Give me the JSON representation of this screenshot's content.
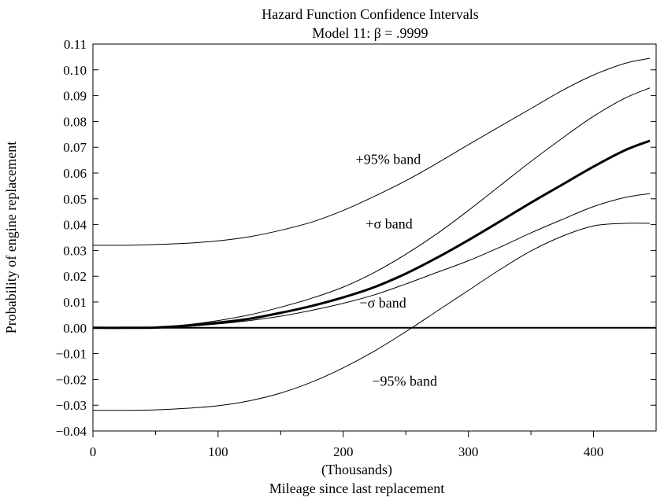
{
  "chart_data": {
    "type": "line",
    "title": "Hazard Function Confidence Intervals",
    "subtitle": "Model 11: β = .9999",
    "xlabel_line1": "(Thousands)",
    "xlabel_line2": "Mileage since last replacement",
    "ylabel": "Probability of engine replacement",
    "xlim": [
      0,
      450
    ],
    "ylim": [
      -0.04,
      0.11
    ],
    "x_ticks": [
      0,
      100,
      200,
      300,
      400
    ],
    "x_tick_labels": [
      "0",
      "100",
      "200",
      "300",
      "400"
    ],
    "x_minor_ticks": [
      50,
      150,
      250,
      350
    ],
    "y_ticks": [
      -0.04,
      -0.03,
      -0.02,
      -0.01,
      0.0,
      0.01,
      0.02,
      0.03,
      0.04,
      0.05,
      0.06,
      0.07,
      0.08,
      0.09,
      0.1,
      0.11
    ],
    "y_tick_labels": [
      "−0.04",
      "−0.03",
      "−0.02",
      "−0.01",
      "0.00",
      "0.01",
      "0.02",
      "0.03",
      "0.04",
      "0.05",
      "0.06",
      "0.07",
      "0.08",
      "0.09",
      "0.10",
      "0.11"
    ],
    "x": [
      0,
      25,
      50,
      75,
      100,
      125,
      150,
      175,
      200,
      225,
      250,
      275,
      300,
      325,
      350,
      375,
      400,
      425,
      445
    ],
    "series": [
      {
        "id": "upper95",
        "values": [
          0.032,
          0.032,
          0.0323,
          0.0328,
          0.0337,
          0.0353,
          0.0378,
          0.041,
          0.0455,
          0.051,
          0.057,
          0.0638,
          0.071,
          0.078,
          0.085,
          0.092,
          0.098,
          0.1025,
          0.1045
        ],
        "bold": false
      },
      {
        "id": "upper_sigma",
        "values": [
          0,
          0,
          0.0002,
          0.0012,
          0.0028,
          0.005,
          0.008,
          0.0115,
          0.0158,
          0.0215,
          0.0285,
          0.0365,
          0.0455,
          0.055,
          0.0645,
          0.0735,
          0.082,
          0.089,
          0.093
        ],
        "bold": false
      },
      {
        "id": "estimate",
        "values": [
          0,
          0,
          0.0001,
          0.0008,
          0.002,
          0.0035,
          0.0058,
          0.0085,
          0.0118,
          0.0158,
          0.021,
          0.0272,
          0.034,
          0.0412,
          0.0485,
          0.0555,
          0.0625,
          0.0688,
          0.0725
        ],
        "bold": true
      },
      {
        "id": "lower_sigma",
        "values": [
          0,
          0,
          0.0001,
          0.0006,
          0.0015,
          0.0028,
          0.0045,
          0.0068,
          0.0095,
          0.0128,
          0.017,
          0.0215,
          0.026,
          0.0312,
          0.0368,
          0.042,
          0.047,
          0.0505,
          0.052
        ],
        "bold": false
      },
      {
        "id": "lower95",
        "values": [
          -0.032,
          -0.032,
          -0.0318,
          -0.0312,
          -0.0302,
          -0.0283,
          -0.0253,
          -0.021,
          -0.0155,
          -0.009,
          -0.0015,
          0.0065,
          0.0145,
          0.0225,
          0.0298,
          0.0355,
          0.0395,
          0.0405,
          0.0405
        ],
        "bold": false
      }
    ],
    "annotations": [
      {
        "text": "+95% band",
        "x": 210,
        "y": 0.0635
      },
      {
        "text": "+σ band",
        "x": 218,
        "y": 0.0385
      },
      {
        "text": "−σ band",
        "x": 213,
        "y": 0.0078
      },
      {
        "text": "−95% band",
        "x": 223,
        "y": -0.0225
      }
    ],
    "zero_line": true,
    "grid": false
  }
}
